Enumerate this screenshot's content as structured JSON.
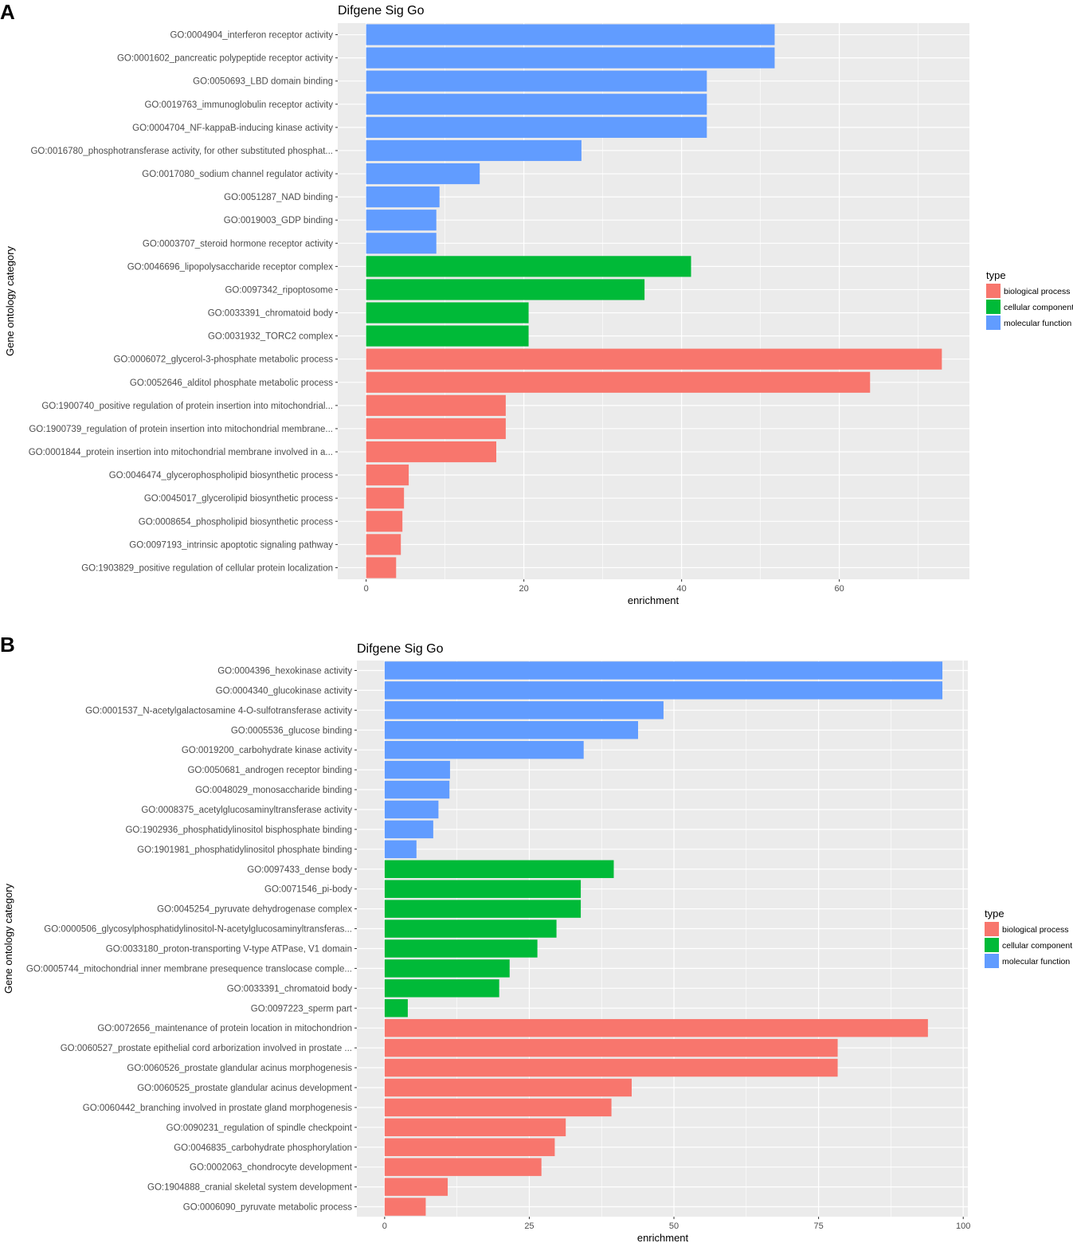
{
  "colors": {
    "biological process": "#F8766D",
    "cellular component": "#00BA38",
    "molecular function": "#619CFF",
    "panel_bg": "#EBEBEB",
    "grid": "#FFFFFF"
  },
  "chart_data": [
    {
      "panel": "A",
      "type": "bar",
      "orientation": "horizontal",
      "title": "Difgene Sig Go",
      "xlabel": "enrichment",
      "ylabel": "Gene ontology category",
      "xlim": [
        -3.6,
        76.5
      ],
      "xticks": [
        0,
        20,
        40,
        60
      ],
      "legend": {
        "title": "type",
        "position": "right",
        "entries": [
          "biological process",
          "cellular component",
          "molecular function"
        ]
      },
      "categories": [
        "GO:0004904_interferon receptor activity",
        "GO:0001602_pancreatic polypeptide receptor activity",
        "GO:0050693_LBD domain binding",
        "GO:0019763_immunoglobulin receptor activity",
        "GO:0004704_NF-kappaB-inducing kinase activity",
        "GO:0016780_phosphotransferase activity, for other substituted phosphat...",
        "GO:0017080_sodium channel regulator activity",
        "GO:0051287_NAD binding",
        "GO:0019003_GDP binding",
        "GO:0003707_steroid hormone receptor activity",
        "GO:0046696_lipopolysaccharide receptor complex",
        "GO:0097342_ripoptosome",
        "GO:0033391_chromatoid body",
        "GO:0031932_TORC2 complex",
        "GO:0006072_glycerol-3-phosphate metabolic process",
        "GO:0052646_alditol phosphate metabolic process",
        "GO:1900740_positive regulation of protein insertion into mitochondrial...",
        "GO:1900739_regulation of protein insertion into mitochondrial membrane...",
        "GO:0001844_protein insertion into mitochondrial membrane involved in a...",
        "GO:0046474_glycerophospholipid biosynthetic process",
        "GO:0045017_glycerolipid biosynthetic process",
        "GO:0008654_phospholipid biosynthetic process",
        "GO:0097193_intrinsic apoptotic signaling pathway",
        "GO:1903829_positive regulation of cellular protein localization"
      ],
      "values": [
        51.8,
        51.8,
        43.2,
        43.2,
        43.2,
        27.3,
        14.4,
        9.3,
        8.9,
        8.9,
        41.2,
        35.3,
        20.6,
        20.6,
        73.0,
        63.9,
        17.7,
        17.7,
        16.5,
        5.4,
        4.8,
        4.6,
        4.4,
        3.8
      ],
      "types": [
        "molecular function",
        "molecular function",
        "molecular function",
        "molecular function",
        "molecular function",
        "molecular function",
        "molecular function",
        "molecular function",
        "molecular function",
        "molecular function",
        "cellular component",
        "cellular component",
        "cellular component",
        "cellular component",
        "biological process",
        "biological process",
        "biological process",
        "biological process",
        "biological process",
        "biological process",
        "biological process",
        "biological process",
        "biological process",
        "biological process"
      ]
    },
    {
      "panel": "B",
      "type": "bar",
      "orientation": "horizontal",
      "title": "Difgene Sig Go",
      "xlabel": "enrichment",
      "ylabel": "Gene ontology category",
      "xlim": [
        -4.8,
        100.8
      ],
      "xticks": [
        0,
        25,
        50,
        75,
        100
      ],
      "legend": {
        "title": "type",
        "position": "right",
        "entries": [
          "biological process",
          "cellular component",
          "molecular function"
        ]
      },
      "categories": [
        "GO:0004396_hexokinase activity",
        "GO:0004340_glucokinase activity",
        "GO:0001537_N-acetylgalactosamine 4-O-sulfotransferase activity",
        "GO:0005536_glucose binding",
        "GO:0019200_carbohydrate kinase activity",
        "GO:0050681_androgen receptor binding",
        "GO:0048029_monosaccharide binding",
        "GO:0008375_acetylglucosaminyltransferase activity",
        "GO:1902936_phosphatidylinositol bisphosphate binding",
        "GO:1901981_phosphatidylinositol phosphate binding",
        "GO:0097433_dense body",
        "GO:0071546_pi-body",
        "GO:0045254_pyruvate dehydrogenase complex",
        "GO:0000506_glycosylphosphatidylinositol-N-acetylglucosaminyltransferas...",
        "GO:0033180_proton-transporting V-type ATPase, V1 domain",
        "GO:0005744_mitochondrial inner membrane presequence translocase comple...",
        "GO:0033391_chromatoid body",
        "GO:0097223_sperm part",
        "GO:0072656_maintenance of protein location in mitochondrion",
        "GO:0060527_prostate epithelial cord arborization involved in prostate ...",
        "GO:0060526_prostate glandular acinus morphogenesis",
        "GO:0060525_prostate glandular acinus development",
        "GO:0060442_branching involved in prostate gland morphogenesis",
        "GO:0090231_regulation of spindle checkpoint",
        "GO:0046835_carbohydrate phosphorylation",
        "GO:0002063_chondrocyte development",
        "GO:1904888_cranial skeletal system development",
        "GO:0006090_pyruvate metabolic process"
      ],
      "values": [
        96.4,
        96.4,
        48.2,
        43.8,
        34.4,
        11.3,
        11.2,
        9.3,
        8.4,
        5.5,
        39.6,
        33.9,
        33.9,
        29.7,
        26.4,
        21.6,
        19.8,
        4.0,
        93.9,
        78.3,
        78.3,
        42.7,
        39.2,
        31.3,
        29.4,
        27.1,
        10.9,
        7.1
      ],
      "types": [
        "molecular function",
        "molecular function",
        "molecular function",
        "molecular function",
        "molecular function",
        "molecular function",
        "molecular function",
        "molecular function",
        "molecular function",
        "molecular function",
        "cellular component",
        "cellular component",
        "cellular component",
        "cellular component",
        "cellular component",
        "cellular component",
        "cellular component",
        "cellular component",
        "biological process",
        "biological process",
        "biological process",
        "biological process",
        "biological process",
        "biological process",
        "biological process",
        "biological process",
        "biological process",
        "biological process"
      ]
    }
  ]
}
